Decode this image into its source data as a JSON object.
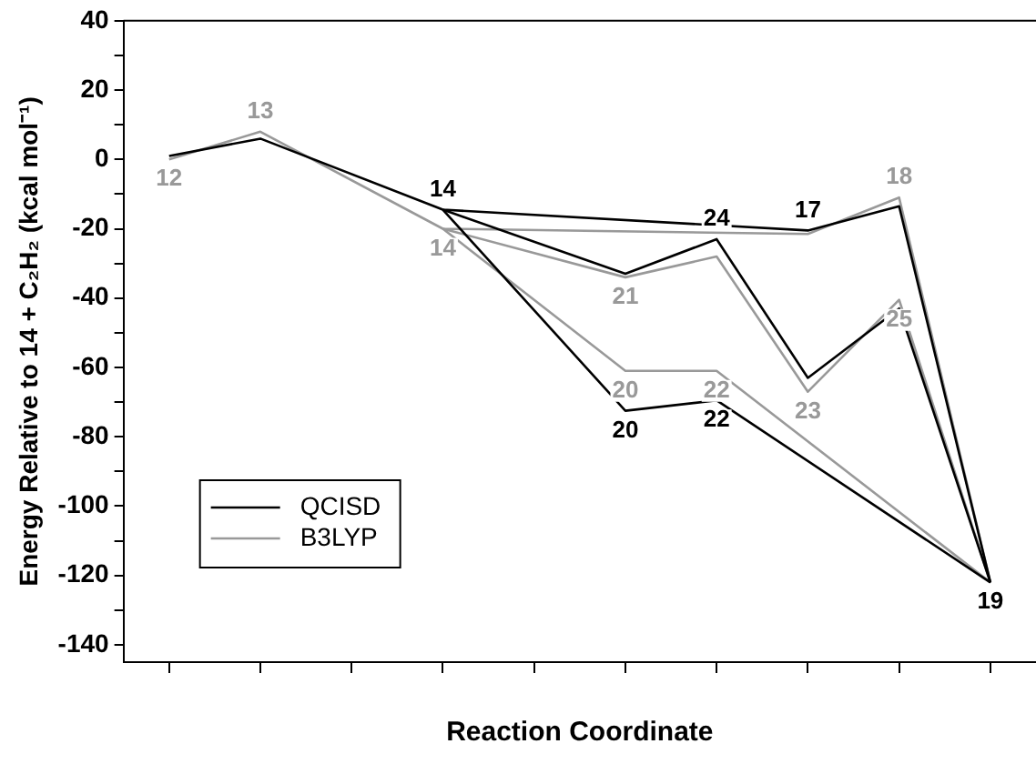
{
  "chart_data": {
    "type": "line",
    "xlabel": "Reaction Coordinate",
    "ylabel": "Energy Relative to 14 + C₂H₂ (kcal mol⁻¹)",
    "categories": [
      null,
      null,
      null,
      null,
      null,
      null,
      null,
      null,
      null,
      null
    ],
    "ylim": [
      -145,
      40
    ],
    "yticks": [
      -140,
      {
        "value": -130,
        "label": null
      },
      -120,
      {
        "value": -110,
        "label": null
      },
      -100,
      {
        "value": -90,
        "label": null
      },
      -80,
      {
        "value": -70,
        "label": null
      },
      -60,
      {
        "value": -50,
        "label": null
      },
      -40,
      {
        "value": -30,
        "label": null
      },
      -20,
      {
        "value": -10,
        "label": null
      },
      0,
      {
        "value": 10,
        "label": null
      },
      20,
      {
        "value": 30,
        "label": null
      },
      40
    ],
    "series": [
      {
        "name": "QCISD",
        "color": "#000000",
        "values": [
          1,
          6,
          null,
          -14.5,
          null,
          null,
          null,
          -20.5,
          -13.5,
          -122
        ]
      },
      {
        "color": "#000000",
        "values": [
          null,
          null,
          null,
          -14.5,
          null,
          -33,
          -23,
          -63,
          -43,
          -122
        ]
      },
      {
        "color": "#000000",
        "values": [
          null,
          null,
          null,
          -14.5,
          null,
          -72.5,
          -69.5,
          null,
          null,
          -122
        ]
      },
      {
        "name": "B3LYP",
        "color": "#999999",
        "values": [
          0,
          8,
          null,
          -20,
          null,
          null,
          null,
          -21.5,
          -11,
          -122
        ]
      },
      {
        "color": "#999999",
        "values": [
          null,
          null,
          null,
          -20,
          null,
          -34,
          -28,
          -67,
          -40.5,
          -122
        ]
      },
      {
        "color": "#999999",
        "values": [
          null,
          null,
          null,
          -20,
          null,
          -61,
          -61,
          null,
          null,
          -122
        ]
      }
    ],
    "annotations": [
      {
        "text": "14",
        "y": -14.5
      },
      {
        "text": "24",
        "y": -23
      },
      {
        "text": "17",
        "y": -20.5
      },
      {
        "text": "20",
        "y": -72.5
      },
      {
        "text": "22",
        "y": -69.5
      },
      {
        "text": "19",
        "y": -122
      },
      {
        "text": "12",
        "y": 0
      },
      {
        "text": "13",
        "y": 8
      },
      {
        "text": "14",
        "y": -20
      },
      {
        "text": "21",
        "y": -34
      },
      {
        "text": "20",
        "y": -61
      },
      {
        "text": "22",
        "y": -61
      },
      {
        "text": "23",
        "y": -67
      },
      {
        "text": "18",
        "y": -11
      },
      {
        "text": "25",
        "y": -40.5
      }
    ],
    "legend": "bottom left",
    "grid": false,
    "tick_labels": "y"
  }
}
